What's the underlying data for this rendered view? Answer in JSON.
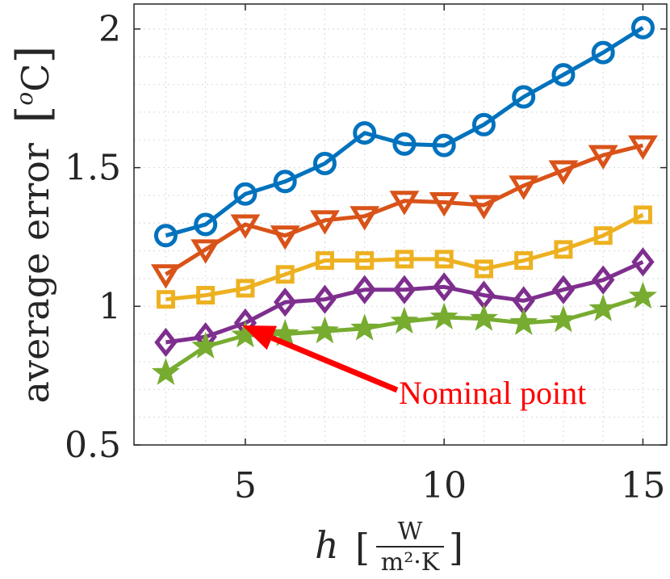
{
  "chart_data": {
    "type": "line",
    "title": "",
    "xlabel": "h",
    "xlabel_unit_numerator": "W",
    "xlabel_unit_denominator": "m²·K",
    "ylabel": "average error",
    "ylabel_unit": "C",
    "ylabel_unit_superscript": "o",
    "xlim": [
      2.2,
      15.6
    ],
    "ylim": [
      0.5,
      2.09
    ],
    "xticks": [
      5,
      10,
      15
    ],
    "yticks": [
      0.5,
      1,
      1.5,
      2
    ],
    "xtick_labels": [
      "5",
      "10",
      "15"
    ],
    "ytick_labels": [
      "0.5",
      "1",
      "1.5",
      "2"
    ],
    "grid": true,
    "x": [
      3,
      4,
      5,
      6,
      7,
      8,
      9,
      10,
      11,
      12,
      13,
      14,
      15
    ],
    "series": [
      {
        "name": "circle",
        "marker": "circle",
        "color": "#0072BD",
        "values": [
          1.255,
          1.295,
          1.405,
          1.45,
          1.515,
          1.625,
          1.585,
          1.58,
          1.655,
          1.755,
          1.835,
          1.915,
          2.005
        ]
      },
      {
        "name": "triangle-down",
        "marker": "triangle-down",
        "color": "#D95319",
        "values": [
          1.115,
          1.205,
          1.295,
          1.255,
          1.31,
          1.325,
          1.38,
          1.375,
          1.365,
          1.435,
          1.49,
          1.545,
          1.58
        ]
      },
      {
        "name": "square",
        "marker": "square",
        "color": "#EDB120",
        "values": [
          1.025,
          1.04,
          1.065,
          1.115,
          1.165,
          1.165,
          1.17,
          1.17,
          1.135,
          1.165,
          1.205,
          1.255,
          1.33
        ]
      },
      {
        "name": "diamond",
        "marker": "diamond",
        "color": "#7E2F8E",
        "values": [
          0.87,
          0.89,
          0.94,
          1.015,
          1.025,
          1.06,
          1.06,
          1.07,
          1.04,
          1.02,
          1.06,
          1.095,
          1.16
        ]
      },
      {
        "name": "star",
        "marker": "star",
        "color": "#77AC30",
        "values": [
          0.76,
          0.855,
          0.895,
          0.9,
          0.91,
          0.92,
          0.945,
          0.96,
          0.955,
          0.94,
          0.95,
          0.99,
          1.035
        ]
      }
    ],
    "annotation": {
      "text": "Nominal point",
      "color": "#ff0000",
      "x": 5,
      "y": 0.925
    }
  }
}
